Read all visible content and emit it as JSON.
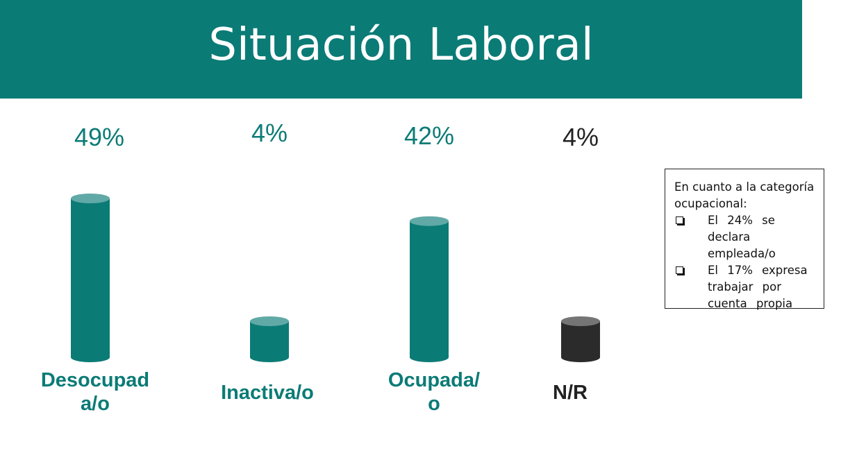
{
  "header": {
    "title": "Situación Laboral"
  },
  "chart_data": {
    "type": "bar",
    "categories": [
      "Desocupad\na/o",
      "Inactiva/o",
      "Ocupada/\no",
      "N/R"
    ],
    "values": [
      49,
      4,
      42,
      4
    ],
    "value_labels": [
      "49%",
      "4%",
      "42%",
      "4%"
    ],
    "colors": [
      "#0b7b76",
      "#0b7b76",
      "#0b7b76",
      "#2b2b2b"
    ],
    "label_colors": [
      "#0b7b76",
      "#0b7b76",
      "#0b7b76",
      "#222222"
    ],
    "title": "Situación Laboral",
    "xlabel": "",
    "ylabel": "",
    "ylim": [
      0,
      49
    ],
    "grid": false,
    "legend": "none"
  },
  "note": {
    "intro": "En cuanto a la categoría ocupacional:",
    "items": [
      "El 24% se declara empleada/o",
      "El 17% expresa trabajar por cuenta propia"
    ]
  }
}
